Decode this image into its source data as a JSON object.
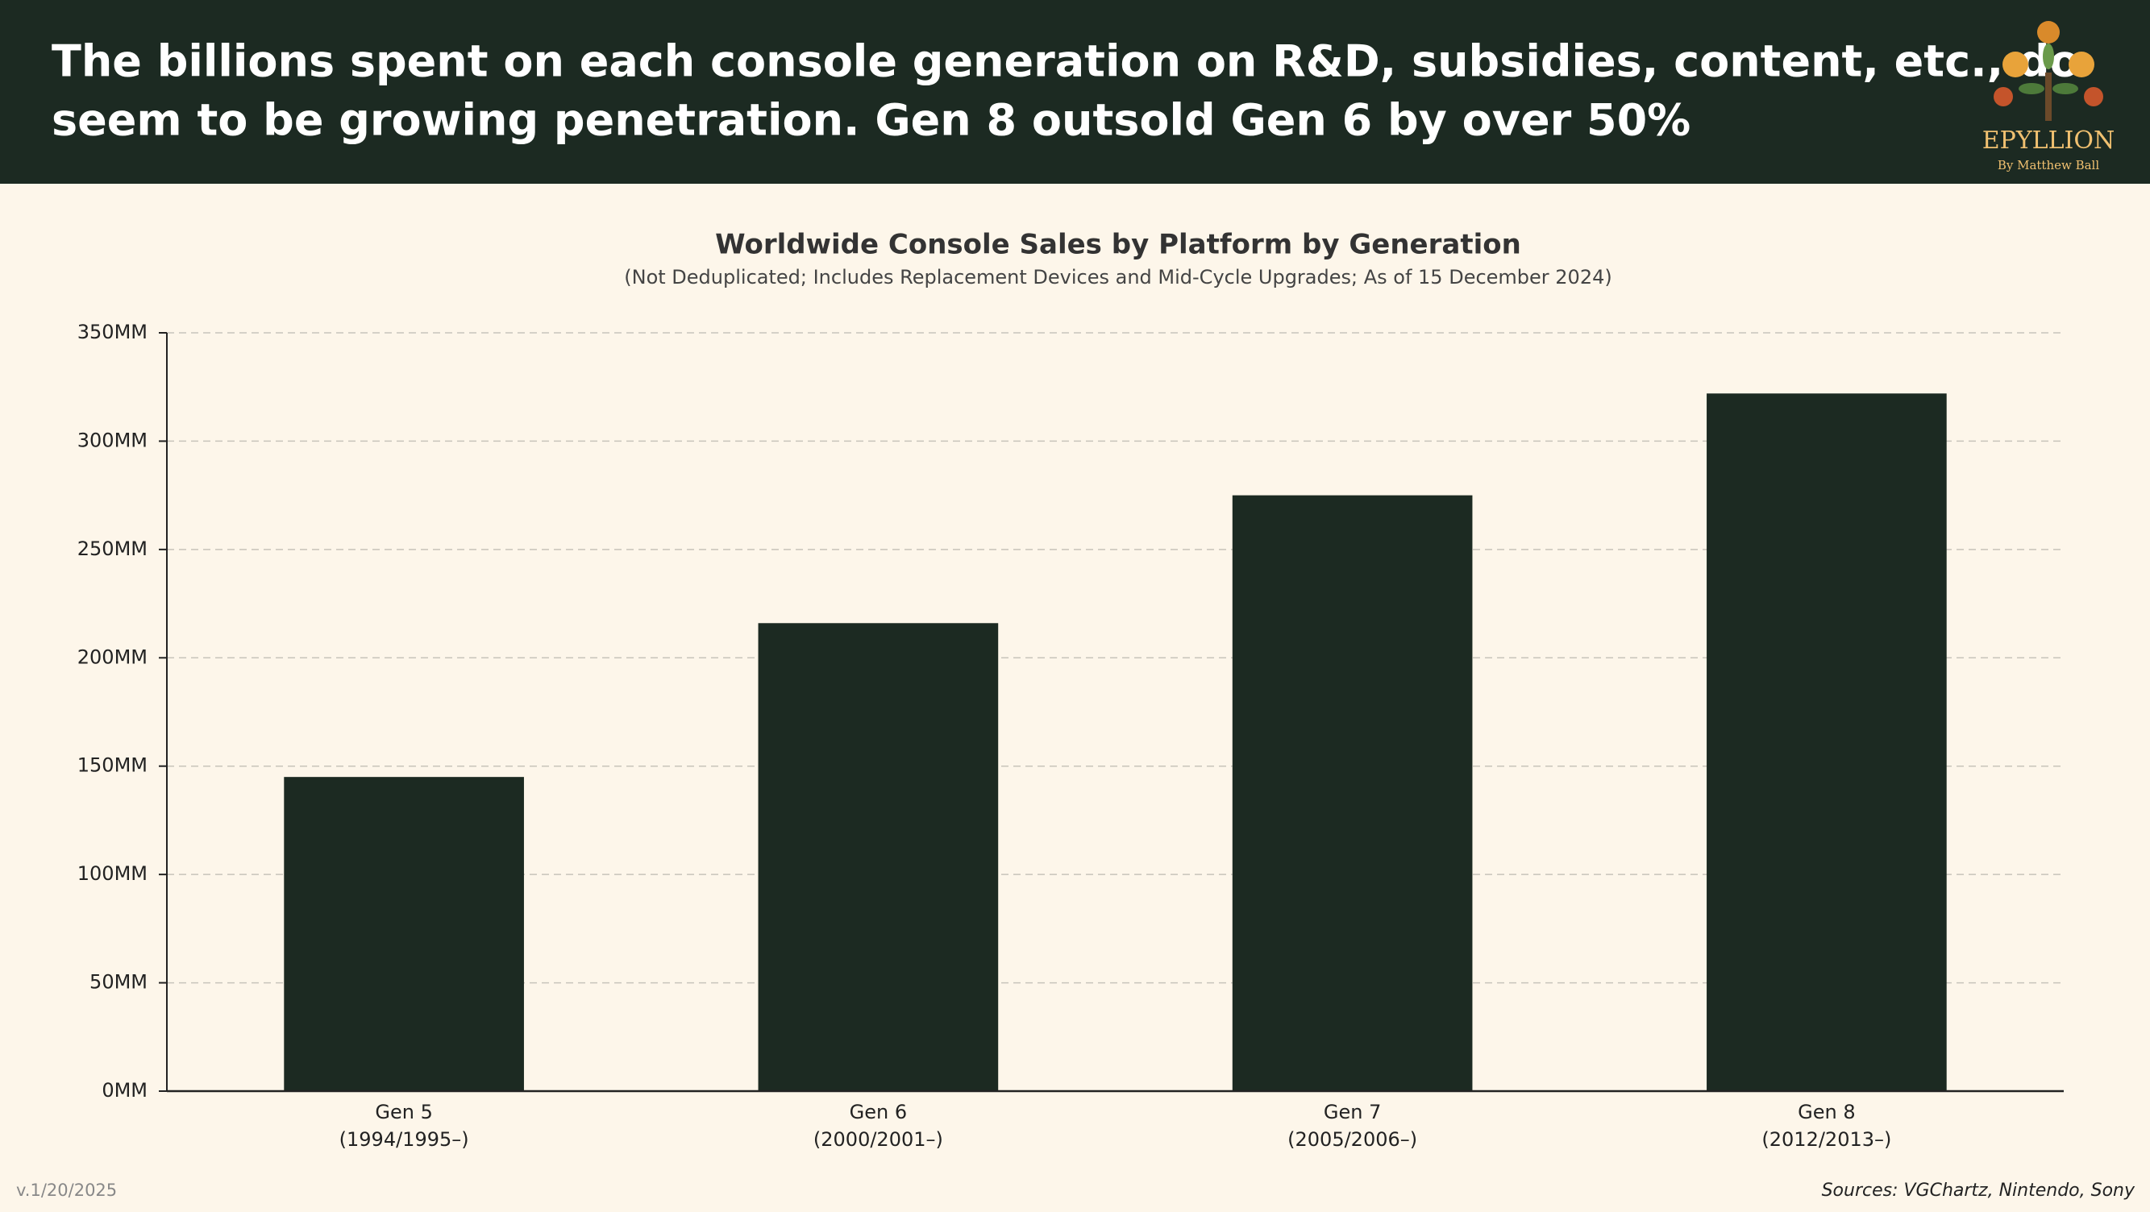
{
  "header": {
    "title_lines": [
      "The billions spent on each console generation on R&D, subsidies, content, etc., do",
      "seem to be growing penetration. Gen 8 outsold Gen 6 by over 50%"
    ],
    "logo_name": "EPYLLION",
    "logo_byline": "By Matthew Ball"
  },
  "chart_data": {
    "type": "bar",
    "title": "Worldwide Console Sales by Platform by Generation",
    "subtitle": "(Not Deduplicated; Includes Replacement Devices and Mid-Cycle Upgrades; As of 15 December 2024)",
    "categories": [
      "Gen 5",
      "Gen 6",
      "Gen 7",
      "Gen 8"
    ],
    "category_periods": [
      "(1994/1995–)",
      "(2000/2001–)",
      "(2005/2006–)",
      "(2012/2013–)"
    ],
    "values": [
      145,
      216,
      275,
      322
    ],
    "color": "#1c2a22",
    "ylim": [
      0,
      350
    ],
    "yticks": [
      {
        "value": 0,
        "label": "0MM"
      },
      {
        "value": 50,
        "label": "50MM"
      },
      {
        "value": 100,
        "label": "100MM"
      },
      {
        "value": 150,
        "label": "150MM"
      },
      {
        "value": 200,
        "label": "200MM"
      },
      {
        "value": 250,
        "label": "250MM"
      },
      {
        "value": 300,
        "label": "300MM"
      },
      {
        "value": 350,
        "label": "350MM"
      }
    ],
    "grid": true
  },
  "footer": {
    "version": "v.1/20/2025",
    "sources": "Sources: VGChartz, Nintendo, Sony"
  }
}
